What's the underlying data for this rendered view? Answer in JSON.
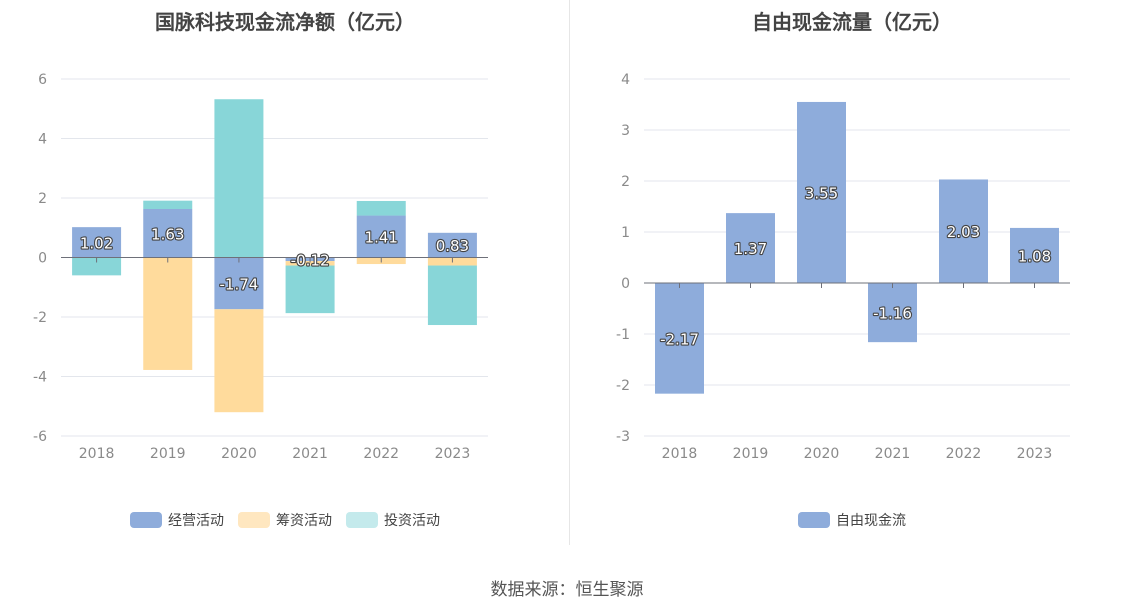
{
  "source_text": "数据来源：恒生聚源",
  "chart_data": [
    {
      "type": "bar",
      "stacked": true,
      "title": "国脉科技现金流净额（亿元）",
      "categories": [
        "2018",
        "2019",
        "2020",
        "2021",
        "2022",
        "2023"
      ],
      "ylim": [
        -6,
        6
      ],
      "yticks": [
        6,
        4,
        2,
        0,
        -2,
        -4,
        -6
      ],
      "grid": true,
      "legend": "bottom-center",
      "series": [
        {
          "name": "经营活动",
          "color": "#8eacdb",
          "values": [
            1.02,
            1.63,
            -1.74,
            -0.12,
            1.41,
            0.83
          ],
          "labels": [
            "1.02",
            "1.63",
            "-1.74",
            "-0.12",
            "1.41",
            "0.83"
          ]
        },
        {
          "name": "筹资活动",
          "color": "#ffdb9c",
          "values": [
            0,
            -3.78,
            -3.46,
            -0.15,
            -0.22,
            -0.27
          ]
        },
        {
          "name": "投资活动",
          "color": "#88d6d8",
          "values": [
            -0.6,
            0.28,
            5.32,
            -1.6,
            0.49,
            -2.0
          ]
        }
      ]
    },
    {
      "type": "bar",
      "title": "自由现金流量（亿元）",
      "categories": [
        "2018",
        "2019",
        "2020",
        "2021",
        "2022",
        "2023"
      ],
      "ylim": [
        -3,
        4
      ],
      "yticks": [
        4,
        3,
        2,
        1,
        0,
        -1,
        -2,
        -3
      ],
      "grid": true,
      "legend": "bottom-center",
      "series": [
        {
          "name": "自由现金流",
          "color": "#8eacdb",
          "values": [
            -2.17,
            1.37,
            3.55,
            -1.16,
            2.03,
            1.08
          ],
          "labels": [
            "-2.17",
            "1.37",
            "3.55",
            "-1.16",
            "2.03",
            "1.08"
          ]
        }
      ]
    }
  ]
}
